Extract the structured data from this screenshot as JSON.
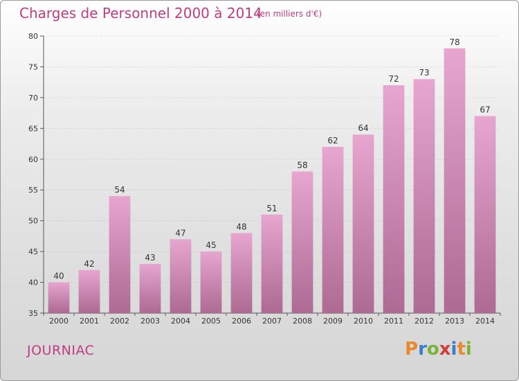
{
  "header": {
    "title": "Charges de Personnel 2000 à 2014",
    "subtitle": "(en milliers d'€)"
  },
  "footer": {
    "commune": "JOURNIAC",
    "logo_text": "Proxiti",
    "logo_letters": [
      {
        "ch": "P",
        "color": "#e8892c"
      },
      {
        "ch": "r",
        "color": "#3a7fc4"
      },
      {
        "ch": "o",
        "color": "#7ab23a"
      },
      {
        "ch": "x",
        "color": "#d23c3c"
      },
      {
        "ch": "i",
        "color": "#3a7fc4"
      },
      {
        "ch": "t",
        "color": "#e8892c"
      },
      {
        "ch": "i",
        "color": "#7ab23a"
      }
    ]
  },
  "colors": {
    "bar_top": "#e6a6cf",
    "bar_bottom": "#ad6a93",
    "grid": "#bdbdbd",
    "text_accent": "#c03c80"
  },
  "chart_data": {
    "type": "bar",
    "title": "Charges de Personnel 2000 à 2014",
    "subtitle": "(en milliers d'€)",
    "xlabel": "",
    "ylabel": "",
    "categories": [
      "2000",
      "2001",
      "2002",
      "2003",
      "2004",
      "2005",
      "2006",
      "2007",
      "2008",
      "2009",
      "2010",
      "2011",
      "2012",
      "2013",
      "2014"
    ],
    "values": [
      40,
      42,
      54,
      43,
      47,
      45,
      48,
      51,
      58,
      62,
      64,
      72,
      73,
      78,
      67
    ],
    "ylim": [
      35,
      80
    ],
    "yticks": [
      35,
      40,
      45,
      50,
      55,
      60,
      65,
      70,
      75,
      80
    ],
    "grid": true,
    "legend": "none"
  }
}
